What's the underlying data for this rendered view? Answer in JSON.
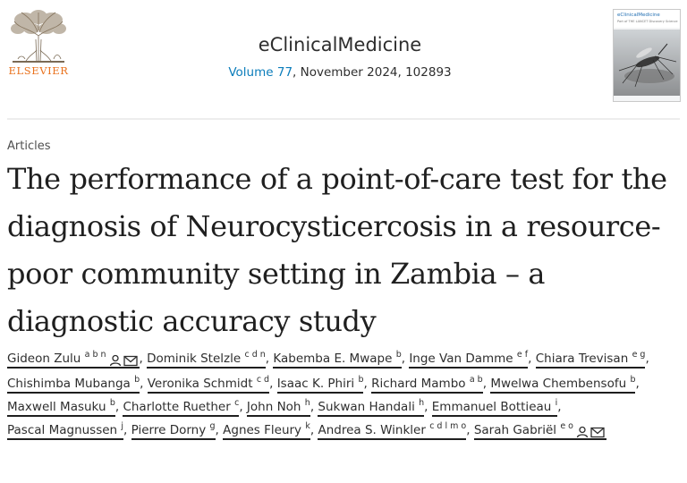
{
  "publisher": {
    "logo_text": "ELSEVIER",
    "brand_color": "#e9711c"
  },
  "journal": {
    "name": "eClinicalMedicine",
    "volume_label": "Volume 77",
    "issue_info": ", November 2024, 102893",
    "link_color": "#0c7dbb"
  },
  "cover": {
    "title": "eClinicalMedicine",
    "subtitle": "Part of THE LANCET Discovery Science"
  },
  "article": {
    "category": "Articles",
    "title": "The performance of a point-of-care test for the diagnosis of Neurocysticercosis in a resource-poor community setting in Zambia – a diagnostic accuracy study"
  },
  "authors": [
    {
      "name": "Gideon Zulu",
      "sup": "a b n",
      "icons": [
        "person-icon",
        "mail-icon"
      ]
    },
    {
      "name": "Dominik Stelzle",
      "sup": "c d n"
    },
    {
      "name": "Kabemba E. Mwape",
      "sup": "b"
    },
    {
      "name": "Inge Van Damme",
      "sup": "e f"
    },
    {
      "name": "Chiara Trevisan",
      "sup": "e g"
    },
    {
      "name": "Chishimba Mubanga",
      "sup": "b"
    },
    {
      "name": "Veronika Schmidt",
      "sup": "c d"
    },
    {
      "name": "Isaac K. Phiri",
      "sup": "b"
    },
    {
      "name": "Richard Mambo",
      "sup": "a b"
    },
    {
      "name": "Mwelwa Chembensofu",
      "sup": "b"
    },
    {
      "name": "Maxwell Masuku",
      "sup": "b"
    },
    {
      "name": "Charlotte Ruether",
      "sup": "c"
    },
    {
      "name": "John Noh",
      "sup": "h"
    },
    {
      "name": "Sukwan Handali",
      "sup": "h"
    },
    {
      "name": "Emmanuel Bottieau",
      "sup": "i"
    },
    {
      "name": "Pascal Magnussen",
      "sup": "j"
    },
    {
      "name": "Pierre Dorny",
      "sup": "g"
    },
    {
      "name": "Agnes Fleury",
      "sup": "k"
    },
    {
      "name": "Andrea S. Winkler",
      "sup": "c d l m o"
    },
    {
      "name": "Sarah Gabriël",
      "sup": "e o",
      "icons": [
        "person-icon",
        "mail-icon"
      ]
    }
  ]
}
